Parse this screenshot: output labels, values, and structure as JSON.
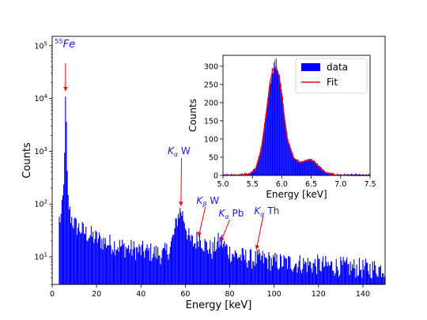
{
  "chart_data": [
    {
      "type": "bar",
      "role": "main",
      "xlabel": "Energy [keV]",
      "ylabel": "Counts",
      "xlim": [
        0,
        150
      ],
      "ylim": [
        3,
        150000
      ],
      "yscale": "log",
      "grid": false,
      "color": "#0000ff",
      "x_ticks": [
        0,
        20,
        40,
        60,
        80,
        100,
        120,
        140
      ],
      "y_ticks": [
        {
          "value": 10,
          "base": "10",
          "exp": "1"
        },
        {
          "value": 100,
          "base": "10",
          "exp": "2"
        },
        {
          "value": 1000,
          "base": "10",
          "exp": "3"
        },
        {
          "value": 10000,
          "base": "10",
          "exp": "4"
        },
        {
          "value": 100000,
          "base": "10",
          "exp": "5"
        }
      ],
      "series": [
        {
          "x": [
            3,
            4,
            5,
            5.5,
            5.9,
            6.2,
            6.5,
            7,
            8,
            10,
            15,
            20,
            25,
            30,
            35,
            40,
            45,
            50,
            53,
            55,
            56,
            57,
            58,
            59,
            60,
            61,
            62,
            64,
            66,
            68,
            70,
            72,
            74,
            76,
            78,
            80,
            85,
            90,
            95,
            100,
            110,
            120,
            130,
            140,
            150
          ],
          "values": [
            50,
            60,
            200,
            2000,
            12000,
            3000,
            400,
            120,
            60,
            40,
            28,
            22,
            18,
            16,
            14,
            13,
            12,
            11,
            15,
            30,
            50,
            70,
            75,
            55,
            40,
            25,
            20,
            18,
            25,
            18,
            15,
            13,
            18,
            20,
            15,
            12,
            10,
            9,
            9,
            8,
            7.5,
            7,
            6.5,
            6,
            6
          ]
        }
      ],
      "annotations": [
        {
          "text_sup": "55",
          "text": "Fe",
          "x": 6,
          "y": 12000
        },
        {
          "text": "K",
          "sub": "α",
          "suffix": " W",
          "x": 58,
          "y": 80
        },
        {
          "text": "K",
          "sub": "β",
          "suffix": " W",
          "x": 66,
          "y": 25
        },
        {
          "text": "K",
          "sub": "α",
          "suffix": " Pb",
          "x": 76,
          "y": 20
        },
        {
          "text": "K",
          "sub": "α",
          "suffix": " Th",
          "x": 92,
          "y": 12
        }
      ]
    },
    {
      "type": "bar",
      "role": "inset",
      "xlabel": "Energy [keV]",
      "ylabel": "Counts",
      "xlim": [
        5.0,
        7.5
      ],
      "ylim": [
        0,
        330
      ],
      "grid": false,
      "x_ticks": [
        "5.0",
        "5.5",
        "6.0",
        "6.5",
        "7.0",
        "7.5"
      ],
      "y_ticks": [
        0,
        50,
        100,
        150,
        200,
        250,
        300
      ],
      "legend": {
        "placement": "top-right",
        "entries": [
          "data",
          "Fit"
        ]
      },
      "series": [
        {
          "name": "data",
          "color": "#0000ff",
          "x": [
            5.0,
            5.3,
            5.45,
            5.55,
            5.65,
            5.72,
            5.8,
            5.85,
            5.9,
            5.95,
            6.0,
            6.05,
            6.1,
            6.2,
            6.3,
            6.4,
            6.47,
            6.55,
            6.65,
            6.75,
            6.9,
            7.2,
            7.5
          ],
          "values": [
            2,
            3,
            6,
            20,
            80,
            160,
            260,
            300,
            305,
            280,
            220,
            150,
            95,
            50,
            38,
            40,
            45,
            40,
            22,
            8,
            3,
            2,
            1
          ]
        },
        {
          "name": "Fit",
          "color": "#ff0000",
          "x": [
            5.0,
            5.3,
            5.45,
            5.55,
            5.65,
            5.72,
            5.8,
            5.85,
            5.9,
            5.95,
            6.0,
            6.05,
            6.1,
            6.2,
            6.3,
            6.4,
            6.47,
            6.55,
            6.65,
            6.75,
            6.9,
            7.2,
            7.5
          ],
          "values": [
            0,
            1,
            4,
            15,
            70,
            150,
            255,
            292,
            298,
            275,
            215,
            150,
            95,
            48,
            35,
            40,
            44,
            38,
            20,
            7,
            1,
            0,
            0
          ]
        }
      ]
    }
  ]
}
